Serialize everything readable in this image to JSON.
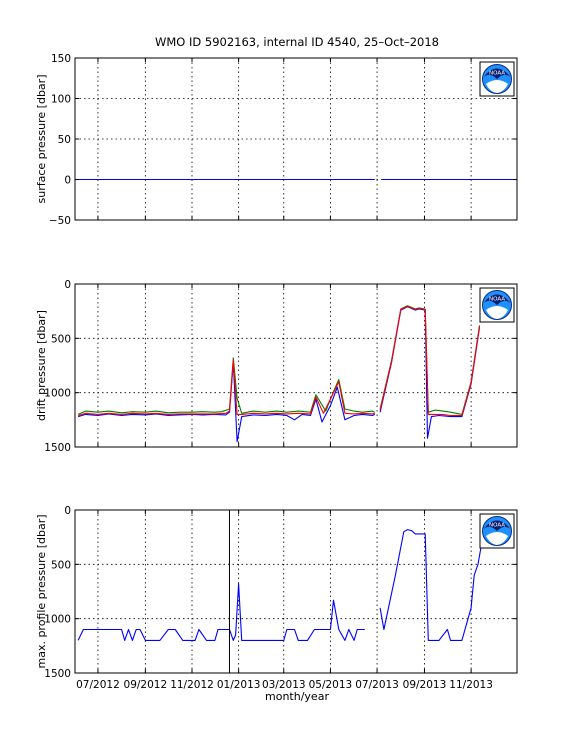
{
  "figure": {
    "title": "WMO ID 5902163, internal ID 4540, 25–Oct–2018",
    "xlabel": "month/year",
    "month_ticks": [
      "07/2012",
      "09/2012",
      "11/2012",
      "01/2013",
      "03/2013",
      "05/2013",
      "07/2013",
      "09/2013",
      "11/2013"
    ],
    "logo_text": "NOAA",
    "colors": {
      "blue": "#0000ff",
      "red": "#ff0000",
      "green": "#008000",
      "axes": "#000000"
    }
  },
  "chart_data": [
    {
      "type": "line",
      "ylabel": "surface pressure [dbar]",
      "ylim": [
        -50,
        150
      ],
      "yticks": [
        -50,
        0,
        50,
        100,
        150
      ],
      "yreverse": false,
      "grid": true,
      "xlim": [
        "2012-06-01",
        "2013-12-31"
      ],
      "series": [
        {
          "color": "#0000ff",
          "points": [
            [
              "2012-06-05",
              0
            ],
            [
              "2013-06-28",
              0
            ]
          ]
        },
        {
          "color": "#0000ff",
          "points": [
            [
              "2013-07-08",
              0
            ],
            [
              "2013-12-30",
              0
            ]
          ]
        }
      ]
    },
    {
      "type": "line",
      "ylabel": "drift pressure [dbar]",
      "ylim": [
        0,
        1500
      ],
      "yticks": [
        0,
        500,
        1000,
        1500
      ],
      "yreverse": true,
      "grid": true,
      "xlim": [
        "2012-06-01",
        "2013-12-31"
      ],
      "series": [
        {
          "color": "#008000",
          "points": [
            [
              "2012-06-05",
              1200
            ],
            [
              "2012-06-15",
              1170
            ],
            [
              "2012-07-01",
              1180
            ],
            [
              "2012-07-15",
              1170
            ],
            [
              "2012-08-01",
              1185
            ],
            [
              "2012-08-15",
              1175
            ],
            [
              "2012-09-01",
              1180
            ],
            [
              "2012-09-15",
              1170
            ],
            [
              "2012-10-01",
              1185
            ],
            [
              "2012-10-15",
              1180
            ],
            [
              "2012-11-01",
              1180
            ],
            [
              "2012-11-15",
              1175
            ],
            [
              "2012-12-01",
              1180
            ],
            [
              "2012-12-10",
              1175
            ],
            [
              "2012-12-20",
              1150
            ],
            [
              "2012-12-25",
              680
            ],
            [
              "2012-12-30",
              1050
            ],
            [
              "2013-01-05",
              1190
            ],
            [
              "2013-01-20",
              1170
            ],
            [
              "2013-02-05",
              1180
            ],
            [
              "2013-02-20",
              1170
            ],
            [
              "2013-03-05",
              1180
            ],
            [
              "2013-03-20",
              1170
            ],
            [
              "2013-04-05",
              1180
            ],
            [
              "2013-04-12",
              1020
            ],
            [
              "2013-04-25",
              1170
            ],
            [
              "2013-05-05",
              990
            ],
            [
              "2013-05-12",
              880
            ],
            [
              "2013-05-20",
              1150
            ],
            [
              "2013-06-01",
              1170
            ],
            [
              "2013-06-12",
              1180
            ],
            [
              "2013-06-25",
              1170
            ],
            [
              "2013-06-28",
              1180
            ]
          ]
        },
        {
          "color": "#0000ff",
          "points": [
            [
              "2012-06-05",
              1220
            ],
            [
              "2012-06-15",
              1200
            ],
            [
              "2012-07-01",
              1210
            ],
            [
              "2012-07-15",
              1195
            ],
            [
              "2012-08-01",
              1210
            ],
            [
              "2012-08-15",
              1200
            ],
            [
              "2012-09-01",
              1205
            ],
            [
              "2012-09-15",
              1195
            ],
            [
              "2012-10-01",
              1210
            ],
            [
              "2012-10-15",
              1205
            ],
            [
              "2012-11-01",
              1200
            ],
            [
              "2012-11-15",
              1205
            ],
            [
              "2012-12-01",
              1200
            ],
            [
              "2012-12-15",
              1205
            ],
            [
              "2012-12-20",
              1180
            ],
            [
              "2012-12-25",
              720
            ],
            [
              "2012-12-30",
              1450
            ],
            [
              "2013-01-05",
              1220
            ],
            [
              "2013-01-20",
              1205
            ],
            [
              "2013-02-05",
              1210
            ],
            [
              "2013-02-20",
              1200
            ],
            [
              "2013-03-05",
              1210
            ],
            [
              "2013-03-15",
              1250
            ],
            [
              "2013-03-25",
              1200
            ],
            [
              "2013-04-05",
              1210
            ],
            [
              "2013-04-12",
              1060
            ],
            [
              "2013-04-20",
              1270
            ],
            [
              "2013-05-01",
              1120
            ],
            [
              "2013-05-10",
              950
            ],
            [
              "2013-05-20",
              1250
            ],
            [
              "2013-06-01",
              1210
            ],
            [
              "2013-06-12",
              1200
            ],
            [
              "2013-06-25",
              1210
            ],
            [
              "2013-06-28",
              1200
            ]
          ]
        },
        {
          "color": "#ff0000",
          "points": [
            [
              "2012-06-05",
              1210
            ],
            [
              "2012-06-15",
              1190
            ],
            [
              "2012-07-01",
              1200
            ],
            [
              "2012-07-15",
              1190
            ],
            [
              "2012-08-01",
              1200
            ],
            [
              "2012-08-15",
              1190
            ],
            [
              "2012-09-01",
              1195
            ],
            [
              "2012-09-15",
              1190
            ],
            [
              "2012-10-01",
              1200
            ],
            [
              "2012-10-15",
              1195
            ],
            [
              "2012-11-01",
              1195
            ],
            [
              "2012-11-15",
              1195
            ],
            [
              "2012-12-01",
              1195
            ],
            [
              "2012-12-15",
              1190
            ],
            [
              "2012-12-20",
              1170
            ],
            [
              "2012-12-25",
              700
            ],
            [
              "2012-12-30",
              1200
            ],
            [
              "2013-01-05",
              1200
            ],
            [
              "2013-01-20",
              1190
            ],
            [
              "2013-02-05",
              1195
            ],
            [
              "2013-02-20",
              1190
            ],
            [
              "2013-03-05",
              1195
            ],
            [
              "2013-03-20",
              1190
            ],
            [
              "2013-04-05",
              1195
            ],
            [
              "2013-04-12",
              1040
            ],
            [
              "2013-04-22",
              1190
            ],
            [
              "2013-05-05",
              1000
            ],
            [
              "2013-05-12",
              900
            ],
            [
              "2013-05-20",
              1190
            ],
            [
              "2013-06-01",
              1195
            ],
            [
              "2013-06-12",
              1190
            ],
            [
              "2013-06-25",
              1195
            ],
            [
              "2013-06-28",
              1190
            ]
          ]
        },
        {
          "color": "#008000",
          "points": [
            [
              "2013-07-05",
              1150
            ],
            [
              "2013-07-20",
              700
            ],
            [
              "2013-08-01",
              230
            ],
            [
              "2013-08-10",
              200
            ],
            [
              "2013-08-20",
              230
            ],
            [
              "2013-08-25",
              220
            ],
            [
              "2013-09-02",
              230
            ],
            [
              "2013-09-06",
              1180
            ],
            [
              "2013-09-15",
              1160
            ],
            [
              "2013-09-25",
              1170
            ],
            [
              "2013-10-05",
              1180
            ],
            [
              "2013-10-20",
              1200
            ],
            [
              "2013-11-01",
              900
            ],
            [
              "2013-11-12",
              380
            ]
          ]
        },
        {
          "color": "#0000ff",
          "points": [
            [
              "2013-07-05",
              1180
            ],
            [
              "2013-07-20",
              720
            ],
            [
              "2013-08-01",
              240
            ],
            [
              "2013-08-10",
              210
            ],
            [
              "2013-08-20",
              240
            ],
            [
              "2013-08-25",
              230
            ],
            [
              "2013-09-02",
              240
            ],
            [
              "2013-09-05",
              1420
            ],
            [
              "2013-09-10",
              1220
            ],
            [
              "2013-09-20",
              1210
            ],
            [
              "2013-10-05",
              1220
            ],
            [
              "2013-10-20",
              1220
            ],
            [
              "2013-11-01",
              920
            ],
            [
              "2013-11-12",
              400
            ]
          ]
        },
        {
          "color": "#ff0000",
          "points": [
            [
              "2013-07-05",
              1160
            ],
            [
              "2013-07-20",
              710
            ],
            [
              "2013-08-01",
              235
            ],
            [
              "2013-08-10",
              205
            ],
            [
              "2013-08-20",
              235
            ],
            [
              "2013-08-25",
              225
            ],
            [
              "2013-09-02",
              235
            ],
            [
              "2013-09-06",
              1200
            ],
            [
              "2013-09-15",
              1200
            ],
            [
              "2013-09-25",
              1200
            ],
            [
              "2013-10-05",
              1210
            ],
            [
              "2013-10-20",
              1210
            ],
            [
              "2013-11-01",
              910
            ],
            [
              "2013-11-12",
              390
            ]
          ]
        }
      ]
    },
    {
      "type": "line",
      "ylabel": "max. profile pressure [dbar]",
      "ylim": [
        0,
        1500
      ],
      "yticks": [
        0,
        500,
        1000,
        1500
      ],
      "yreverse": true,
      "grid": true,
      "xlim": [
        "2012-06-01",
        "2013-12-31"
      ],
      "vline": "2012-12-20",
      "series": [
        {
          "color": "#0000ff",
          "points": [
            [
              "2012-06-05",
              1200
            ],
            [
              "2012-06-12",
              1100
            ],
            [
              "2012-07-01",
              1100
            ],
            [
              "2012-07-20",
              1100
            ],
            [
              "2012-08-01",
              1100
            ],
            [
              "2012-08-05",
              1200
            ],
            [
              "2012-08-10",
              1100
            ],
            [
              "2012-08-15",
              1200
            ],
            [
              "2012-08-20",
              1100
            ],
            [
              "2012-08-25",
              1100
            ],
            [
              "2012-09-01",
              1200
            ],
            [
              "2012-09-15",
              1200
            ],
            [
              "2012-09-20",
              1200
            ],
            [
              "2012-10-01",
              1100
            ],
            [
              "2012-10-10",
              1100
            ],
            [
              "2012-10-20",
              1200
            ],
            [
              "2012-11-01",
              1200
            ],
            [
              "2012-11-05",
              1200
            ],
            [
              "2012-11-10",
              1100
            ],
            [
              "2012-11-20",
              1200
            ],
            [
              "2012-12-01",
              1200
            ],
            [
              "2012-12-05",
              1100
            ],
            [
              "2012-12-20",
              1100
            ],
            [
              "2012-12-25",
              1200
            ],
            [
              "2012-12-28",
              1150
            ],
            [
              "2013-01-01",
              680
            ],
            [
              "2013-01-05",
              1200
            ],
            [
              "2013-01-15",
              1200
            ],
            [
              "2013-02-01",
              1200
            ],
            [
              "2013-03-01",
              1200
            ],
            [
              "2013-03-05",
              1100
            ],
            [
              "2013-03-15",
              1100
            ],
            [
              "2013-03-20",
              1200
            ],
            [
              "2013-04-01",
              1200
            ],
            [
              "2013-04-10",
              1100
            ],
            [
              "2013-04-20",
              1100
            ],
            [
              "2013-05-01",
              1100
            ],
            [
              "2013-05-05",
              830
            ],
            [
              "2013-05-12",
              1100
            ],
            [
              "2013-05-20",
              1200
            ],
            [
              "2013-05-25",
              1100
            ],
            [
              "2013-06-01",
              1200
            ],
            [
              "2013-06-05",
              1100
            ],
            [
              "2013-06-15",
              1100
            ]
          ]
        },
        {
          "color": "#0000ff",
          "points": [
            [
              "2013-07-05",
              900
            ],
            [
              "2013-07-10",
              1100
            ],
            [
              "2013-07-25",
              600
            ],
            [
              "2013-08-05",
              200
            ],
            [
              "2013-08-10",
              180
            ],
            [
              "2013-08-15",
              190
            ],
            [
              "2013-08-20",
              220
            ],
            [
              "2013-08-25",
              220
            ],
            [
              "2013-09-02",
              220
            ],
            [
              "2013-09-06",
              1200
            ],
            [
              "2013-09-20",
              1200
            ],
            [
              "2013-10-01",
              1100
            ],
            [
              "2013-10-05",
              1200
            ],
            [
              "2013-10-20",
              1200
            ],
            [
              "2013-11-01",
              900
            ],
            [
              "2013-11-05",
              600
            ],
            [
              "2013-11-10",
              500
            ],
            [
              "2013-11-15",
              300
            ]
          ]
        }
      ]
    }
  ]
}
